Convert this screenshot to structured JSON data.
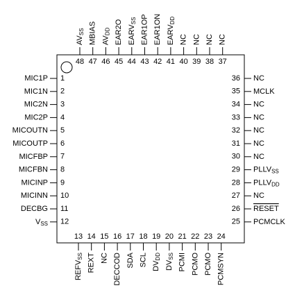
{
  "pins": {
    "top": [
      {
        "number": "48",
        "name": "AV",
        "sub": "SS"
      },
      {
        "number": "47",
        "name": "MBIAS"
      },
      {
        "number": "46",
        "name": "AV",
        "sub": "DD"
      },
      {
        "number": "45",
        "name": "EAR2O"
      },
      {
        "number": "44",
        "name": "EARV",
        "sub": "SS"
      },
      {
        "number": "43",
        "name": "EAR1OP"
      },
      {
        "number": "42",
        "name": "EAR1ON"
      },
      {
        "number": "41",
        "name": "EARV",
        "sub": "DD"
      },
      {
        "number": "40",
        "name": "NC"
      },
      {
        "number": "39",
        "name": "NC"
      },
      {
        "number": "38",
        "name": "NC"
      },
      {
        "number": "37",
        "name": "NC"
      }
    ],
    "left": [
      {
        "number": "1",
        "name": "MIC1P"
      },
      {
        "number": "2",
        "name": "MIC1N"
      },
      {
        "number": "3",
        "name": "MIC2N"
      },
      {
        "number": "4",
        "name": "MIC2P"
      },
      {
        "number": "5",
        "name": "MICOUTN"
      },
      {
        "number": "6",
        "name": "MICOUTP"
      },
      {
        "number": "7",
        "name": "MICFBP"
      },
      {
        "number": "8",
        "name": "MICFBN"
      },
      {
        "number": "9",
        "name": "MICINP"
      },
      {
        "number": "10",
        "name": "MICINN"
      },
      {
        "number": "11",
        "name": "DECBG"
      },
      {
        "number": "12",
        "name": "V",
        "sub": "SS"
      }
    ],
    "right": [
      {
        "number": "36",
        "name": "NC"
      },
      {
        "number": "35",
        "name": "MCLK"
      },
      {
        "number": "34",
        "name": "NC"
      },
      {
        "number": "33",
        "name": "NC"
      },
      {
        "number": "32",
        "name": "NC"
      },
      {
        "number": "31",
        "name": "NC"
      },
      {
        "number": "30",
        "name": "NC"
      },
      {
        "number": "29",
        "name": "PLLV",
        "sub": "SS"
      },
      {
        "number": "28",
        "name": "PLLV",
        "sub": "DD"
      },
      {
        "number": "27",
        "name": "NC"
      },
      {
        "number": "26",
        "name": "RESET",
        "overline": true
      },
      {
        "number": "25",
        "name": "PCMCLK"
      }
    ],
    "bottom": [
      {
        "number": "13",
        "name": "REFV",
        "sub": "SS"
      },
      {
        "number": "14",
        "name": "REXT"
      },
      {
        "number": "15",
        "name": "NC"
      },
      {
        "number": "16",
        "name": "DECCOD"
      },
      {
        "number": "17",
        "name": "SDA"
      },
      {
        "number": "18",
        "name": "SCL"
      },
      {
        "number": "19",
        "name": "DV",
        "sub": "DD"
      },
      {
        "number": "20",
        "name": "DV",
        "sub": "SS"
      },
      {
        "number": "21",
        "name": "PCMI"
      },
      {
        "number": "22",
        "name": "PCMO"
      },
      {
        "number": "23",
        "name": "PCMO"
      },
      {
        "number": "24",
        "name": "PCMSYN"
      }
    ]
  }
}
